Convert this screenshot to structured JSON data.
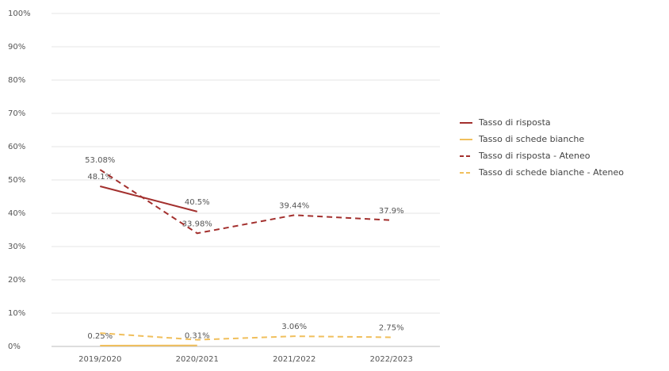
{
  "chart_data": {
    "type": "line",
    "categories": [
      "2019/2020",
      "2020/2021",
      "2021/2022",
      "2022/2023"
    ],
    "series": [
      {
        "name": "Tasso di risposta",
        "color": "#a3302e",
        "dash": false,
        "values": [
          48.1,
          40.5,
          null,
          null
        ],
        "value_labels": [
          "48.1%",
          "40.5%",
          null,
          null
        ]
      },
      {
        "name": "Tasso di schede bianche",
        "color": "#f0bf5c",
        "dash": false,
        "values": [
          0.25,
          0.31,
          null,
          null
        ],
        "value_labels": [
          "0.25%",
          "0.31%",
          null,
          null
        ]
      },
      {
        "name": "Tasso di risposta - Ateneo",
        "color": "#a3302e",
        "dash": true,
        "values": [
          53.08,
          33.98,
          39.44,
          37.9
        ],
        "value_labels": [
          "53.08%",
          "33.98%",
          "39.44%",
          "37.9%"
        ]
      },
      {
        "name": "Tasso di schede bianche - Ateneo",
        "color": "#f0bf5c",
        "dash": true,
        "values": [
          4,
          2,
          3.06,
          2.75
        ],
        "value_labels": [
          null,
          null,
          "3.06%",
          "2.75%"
        ]
      }
    ],
    "ylim": [
      0,
      100
    ],
    "yticks": [
      {
        "value": 0,
        "label": "0%"
      },
      {
        "value": 10,
        "label": "10%"
      },
      {
        "value": 20,
        "label": "20%"
      },
      {
        "value": 30,
        "label": "30%"
      },
      {
        "value": 40,
        "label": "40%"
      },
      {
        "value": 50,
        "label": "50%"
      },
      {
        "value": 60,
        "label": "60%"
      },
      {
        "value": 70,
        "label": "70%"
      },
      {
        "value": 80,
        "label": "80%"
      },
      {
        "value": 90,
        "label": "90%"
      },
      {
        "value": 100,
        "label": "100%"
      }
    ],
    "grid": true,
    "legend": "right"
  }
}
